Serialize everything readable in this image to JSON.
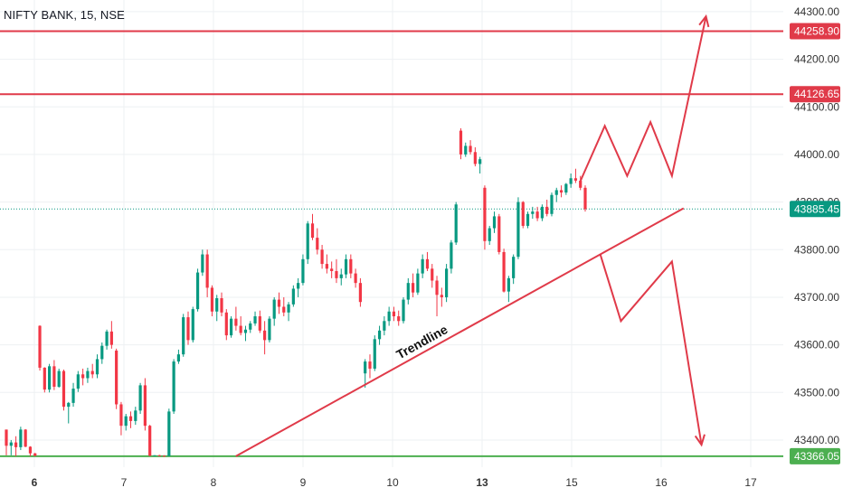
{
  "header": {
    "symbol_title": "NIFTY BANK, 15, NSE"
  },
  "colors": {
    "up": "#089981",
    "down": "#f23645",
    "drawing": "#e03a49",
    "support": "#4caf50",
    "grid": "#eef0f3"
  },
  "chart_data": {
    "type": "candlestick",
    "title": "NIFTY BANK, 15, NSE",
    "y_range": [
      43343,
      44315
    ],
    "y_ticks": [
      "43400.00",
      "43500.00",
      "43600.00",
      "43700.00",
      "43800.00",
      "43900.00",
      "44000.00",
      "44100.00",
      "44200.00",
      "44300.00"
    ],
    "x_tick_labels": [
      {
        "label": "6",
        "session": 0
      },
      {
        "label": "7",
        "session": 1
      },
      {
        "label": "8",
        "session": 2
      },
      {
        "label": "9",
        "session": 3
      },
      {
        "label": "10",
        "session": 4
      },
      {
        "label": "13",
        "session": 5
      },
      {
        "label": "15",
        "session": 6
      },
      {
        "label": "16",
        "session": 7
      },
      {
        "label": "17",
        "session": 8
      }
    ],
    "bold_x_ticks": [
      "6",
      "13"
    ],
    "price_tags": [
      {
        "value": 44258.9,
        "label": "44258.90",
        "kind": "resistance"
      },
      {
        "value": 44126.65,
        "label": "44126.65",
        "kind": "resistance"
      },
      {
        "value": 43885.45,
        "label": "43885.45",
        "kind": "last_price"
      },
      {
        "value": 43366.05,
        "label": "43366.05",
        "kind": "support"
      }
    ],
    "annotations": [
      {
        "text": "Trendline",
        "kind": "trendline",
        "from": {
          "session": 2.25,
          "price": 43366
        },
        "to": {
          "session": 7.25,
          "price": 43887
        }
      },
      {
        "kind": "bullish-path",
        "points": [
          {
            "session": 6.1,
            "price": 43945
          },
          {
            "session": 6.37,
            "price": 44060
          },
          {
            "session": 6.62,
            "price": 43955
          },
          {
            "session": 6.88,
            "price": 44068
          },
          {
            "session": 7.12,
            "price": 43955
          },
          {
            "session": 7.5,
            "price": 44290
          }
        ]
      },
      {
        "kind": "bearish-path",
        "points": [
          {
            "session": 6.32,
            "price": 43790
          },
          {
            "session": 6.55,
            "price": 43650
          },
          {
            "session": 7.12,
            "price": 43775
          },
          {
            "session": 7.45,
            "price": 43390
          }
        ]
      }
    ],
    "candles": [
      [
        43422,
        43422,
        43368,
        43388
      ],
      [
        43388,
        43400,
        43368,
        43395
      ],
      [
        43395,
        43408,
        43366,
        43385
      ],
      [
        43385,
        43428,
        43379,
        43422
      ],
      [
        43422,
        43423,
        43385,
        43386
      ],
      [
        43386,
        43387,
        43366,
        43372
      ],
      [
        43372,
        43373,
        43366,
        43367
      ],
      [
        43640,
        43641,
        43546,
        43552
      ],
      [
        43552,
        43553,
        43500,
        43506
      ],
      [
        43506,
        43560,
        43500,
        43555
      ],
      [
        43555,
        43568,
        43505,
        43512
      ],
      [
        43512,
        43550,
        43510,
        43545
      ],
      [
        43545,
        43548,
        43462,
        43470
      ],
      [
        43470,
        43480,
        43435,
        43478
      ],
      [
        43478,
        43520,
        43470,
        43508
      ],
      [
        43508,
        43545,
        43501,
        43538
      ],
      [
        43538,
        43550,
        43515,
        43530
      ],
      [
        43530,
        43552,
        43520,
        43545
      ],
      [
        43545,
        43560,
        43530,
        43538
      ],
      [
        43538,
        43580,
        43530,
        43570
      ],
      [
        43570,
        43605,
        43560,
        43598
      ],
      [
        43598,
        43632,
        43590,
        43628
      ],
      [
        43628,
        43650,
        43592,
        43600
      ],
      [
        43588,
        43592,
        43465,
        43475
      ],
      [
        43475,
        43480,
        43410,
        43430
      ],
      [
        43430,
        43455,
        43420,
        43450
      ],
      [
        43450,
        43460,
        43425,
        43440
      ],
      [
        43440,
        43470,
        43432,
        43462
      ],
      [
        43462,
        43520,
        43455,
        43515
      ],
      [
        43515,
        43530,
        43420,
        43430
      ],
      [
        43430,
        43432,
        43366,
        43367
      ],
      [
        43367,
        43368,
        43366,
        43368
      ],
      [
        43368,
        43369,
        43366,
        43367
      ],
      [
        43367,
        43368,
        43366,
        43366
      ],
      [
        43366,
        43466,
        43366,
        43460
      ],
      [
        43460,
        43570,
        43455,
        43565
      ],
      [
        43565,
        43590,
        43560,
        43580
      ],
      [
        43580,
        43665,
        43575,
        43658
      ],
      [
        43658,
        43670,
        43600,
        43610
      ],
      [
        43610,
        43680,
        43605,
        43675
      ],
      [
        43675,
        43760,
        43670,
        43752
      ],
      [
        43752,
        43800,
        43745,
        43790
      ],
      [
        43790,
        43800,
        43700,
        43720
      ],
      [
        43720,
        43725,
        43660,
        43670
      ],
      [
        43670,
        43705,
        43650,
        43698
      ],
      [
        43698,
        43710,
        43660,
        43668
      ],
      [
        43668,
        43675,
        43610,
        43620
      ],
      [
        43620,
        43660,
        43615,
        43655
      ],
      [
        43655,
        43680,
        43630,
        43640
      ],
      [
        43640,
        43660,
        43620,
        43625
      ],
      [
        43625,
        43640,
        43608,
        43632
      ],
      [
        43632,
        43650,
        43625,
        43645
      ],
      [
        43645,
        43670,
        43640,
        43660
      ],
      [
        43660,
        43672,
        43625,
        43630
      ],
      [
        43630,
        43650,
        43580,
        43610
      ],
      [
        43610,
        43660,
        43605,
        43655
      ],
      [
        43655,
        43700,
        43640,
        43695
      ],
      [
        43695,
        43710,
        43665,
        43680
      ],
      [
        43680,
        43700,
        43660,
        43668
      ],
      [
        43668,
        43690,
        43650,
        43685
      ],
      [
        43685,
        43725,
        43680,
        43718
      ],
      [
        43718,
        43740,
        43700,
        43730
      ],
      [
        43730,
        43790,
        43725,
        43780
      ],
      [
        43780,
        43860,
        43770,
        43855
      ],
      [
        43855,
        43875,
        43820,
        43825
      ],
      [
        43825,
        43845,
        43790,
        43800
      ],
      [
        43800,
        43810,
        43760,
        43770
      ],
      [
        43770,
        43790,
        43750,
        43760
      ],
      [
        43760,
        43775,
        43740,
        43755
      ],
      [
        43755,
        43780,
        43730,
        43740
      ],
      [
        43740,
        43760,
        43725,
        43748
      ],
      [
        43748,
        43790,
        43740,
        43780
      ],
      [
        43780,
        43790,
        43740,
        43750
      ],
      [
        43750,
        43760,
        43720,
        43730
      ],
      [
        43730,
        43740,
        43680,
        43690
      ],
      [
        43540,
        43570,
        43510,
        43565
      ],
      [
        43565,
        43580,
        43530,
        43550
      ],
      [
        43550,
        43620,
        43545,
        43612
      ],
      [
        43612,
        43640,
        43600,
        43630
      ],
      [
        43630,
        43660,
        43620,
        43650
      ],
      [
        43650,
        43680,
        43640,
        43670
      ],
      [
        43670,
        43680,
        43650,
        43660
      ],
      [
        43660,
        43672,
        43640,
        43650
      ],
      [
        43650,
        43700,
        43645,
        43695
      ],
      [
        43695,
        43740,
        43685,
        43730
      ],
      [
        43730,
        43750,
        43700,
        43710
      ],
      [
        43710,
        43760,
        43705,
        43750
      ],
      [
        43750,
        43790,
        43740,
        43780
      ],
      [
        43780,
        43795,
        43755,
        43760
      ],
      [
        43760,
        43770,
        43720,
        43735
      ],
      [
        43735,
        43745,
        43660,
        43705
      ],
      [
        43705,
        43720,
        43680,
        43700
      ],
      [
        43700,
        43770,
        43690,
        43760
      ],
      [
        43760,
        43820,
        43750,
        43815
      ],
      [
        43815,
        43900,
        43810,
        43895
      ],
      [
        44050,
        44055,
        43990,
        44000
      ],
      [
        44000,
        44025,
        43995,
        44018
      ],
      [
        44018,
        44030,
        44000,
        44005
      ],
      [
        44005,
        44015,
        43975,
        43980
      ],
      [
        43980,
        43995,
        43960,
        43990
      ],
      [
        43930,
        43935,
        43800,
        43818
      ],
      [
        43818,
        43850,
        43810,
        43845
      ],
      [
        43845,
        43880,
        43835,
        43870
      ],
      [
        43870,
        43875,
        43790,
        43795
      ],
      [
        43795,
        43802,
        43710,
        43712
      ],
      [
        43712,
        43745,
        43690,
        43740
      ],
      [
        43740,
        43790,
        43728,
        43785
      ],
      [
        43785,
        43910,
        43780,
        43900
      ],
      [
        43900,
        43902,
        43845,
        43850
      ],
      [
        43850,
        43880,
        43845,
        43875
      ],
      [
        43875,
        43890,
        43865,
        43880
      ],
      [
        43880,
        43890,
        43860,
        43866
      ],
      [
        43866,
        43895,
        43860,
        43890
      ],
      [
        43890,
        43905,
        43870,
        43875
      ],
      [
        43875,
        43920,
        43870,
        43915
      ],
      [
        43915,
        43930,
        43900,
        43925
      ],
      [
        43925,
        43935,
        43910,
        43920
      ],
      [
        43920,
        43940,
        43915,
        43938
      ],
      [
        43938,
        43960,
        43930,
        43950
      ],
      [
        43950,
        43970,
        43940,
        43945
      ],
      [
        43945,
        43955,
        43925,
        43930
      ],
      [
        43930,
        43935,
        43880,
        43885
      ]
    ]
  }
}
